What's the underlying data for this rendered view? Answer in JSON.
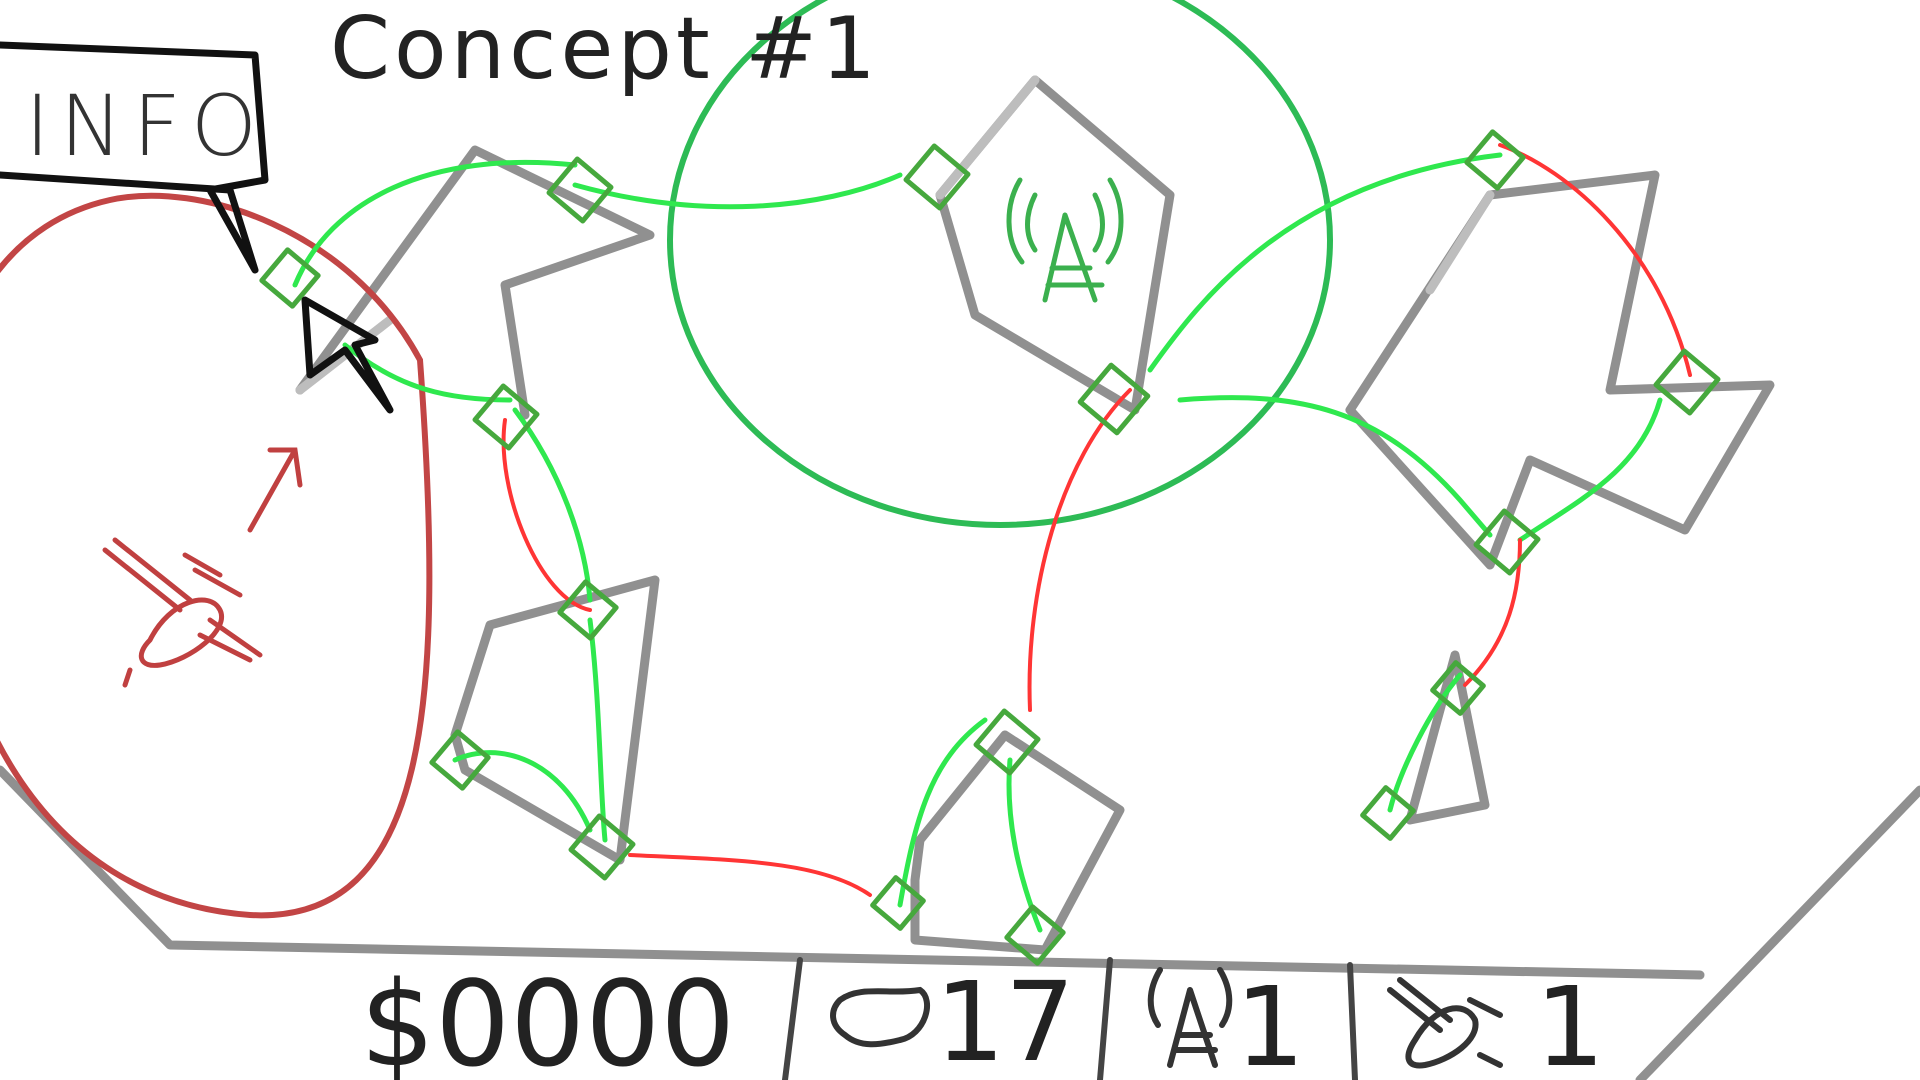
{
  "header": {
    "title": "Concept #1"
  },
  "info_button": {
    "label": "INFO"
  },
  "hud": {
    "money": "$0000",
    "cities_count": "17",
    "towers_count": "1",
    "satellites_count": "1"
  },
  "icons": {
    "tower": "radio-tower-icon",
    "satellite": "satellite-icon",
    "city": "city-blob-icon",
    "cursor": "cursor-icon"
  },
  "colors": {
    "connected_link": "#2fe84e",
    "disconnected_link": "#ff3535",
    "node": "#46a83d",
    "coverage_ring": "#2dbb55",
    "satellite_range": "#c24545"
  }
}
